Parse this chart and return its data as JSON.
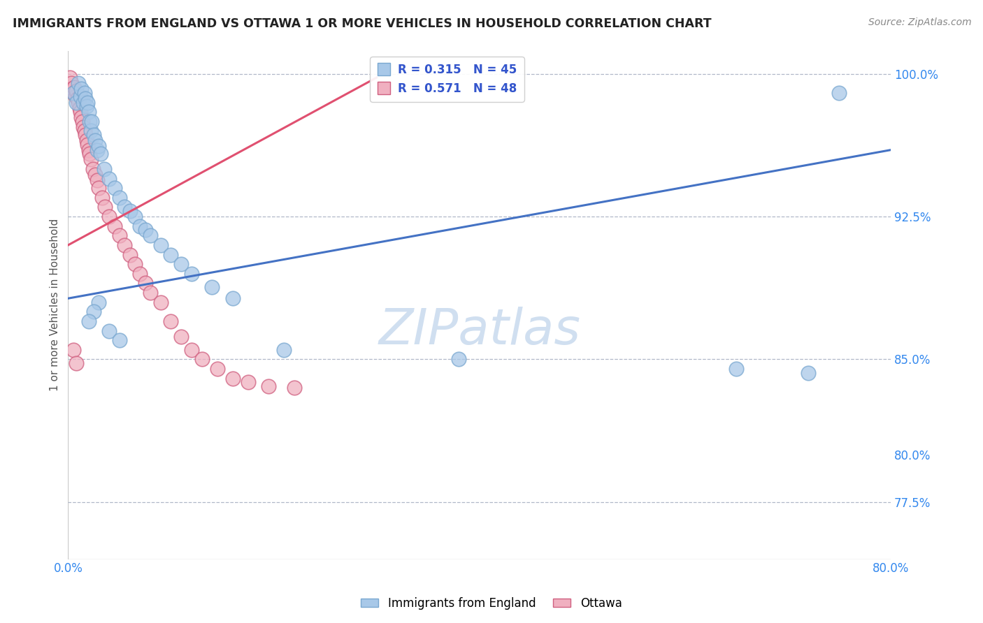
{
  "title": "IMMIGRANTS FROM ENGLAND VS OTTAWA 1 OR MORE VEHICLES IN HOUSEHOLD CORRELATION CHART",
  "source": "Source: ZipAtlas.com",
  "ylabel": "1 or more Vehicles in Household",
  "legend_label_blue": "Immigrants from England",
  "legend_label_pink": "Ottawa",
  "R_blue": 0.315,
  "N_blue": 45,
  "R_pink": 0.571,
  "N_pink": 48,
  "xlim": [
    0.0,
    0.8
  ],
  "ylim": [
    0.745,
    1.012
  ],
  "xticks": [
    0.0,
    0.1,
    0.2,
    0.3,
    0.4,
    0.5,
    0.6,
    0.7,
    0.8
  ],
  "xticklabels": [
    "0.0%",
    "",
    "",
    "",
    "",
    "",
    "",
    "",
    "80.0%"
  ],
  "yticks": [
    0.775,
    0.8,
    0.825,
    0.85,
    0.875,
    0.9,
    0.925,
    0.95,
    0.975,
    1.0
  ],
  "yticklabels_right": [
    "77.5%",
    "80.0%",
    "",
    "85.0%",
    "",
    "",
    "92.5%",
    "",
    "",
    "100.0%"
  ],
  "hgrid_values": [
    1.0,
    0.925,
    0.85,
    0.775
  ],
  "color_blue": "#a8c8e8",
  "color_blue_edge": "#7aa8d0",
  "color_pink": "#f0b0c0",
  "color_pink_edge": "#d06080",
  "color_blue_line": "#4472c4",
  "color_pink_line": "#e05070",
  "watermark_color": "#d0dff0",
  "blue_x": [
    0.005,
    0.008,
    0.01,
    0.012,
    0.013,
    0.015,
    0.016,
    0.017,
    0.018,
    0.019,
    0.02,
    0.021,
    0.022,
    0.023,
    0.025,
    0.026,
    0.028,
    0.03,
    0.032,
    0.035,
    0.04,
    0.045,
    0.05,
    0.055,
    0.06,
    0.065,
    0.07,
    0.075,
    0.08,
    0.09,
    0.1,
    0.11,
    0.12,
    0.14,
    0.16,
    0.03,
    0.025,
    0.02,
    0.04,
    0.05,
    0.21,
    0.38,
    0.65,
    0.72,
    0.75
  ],
  "blue_y": [
    0.99,
    0.985,
    0.995,
    0.988,
    0.992,
    0.985,
    0.99,
    0.987,
    0.983,
    0.985,
    0.98,
    0.975,
    0.97,
    0.975,
    0.968,
    0.965,
    0.96,
    0.962,
    0.958,
    0.95,
    0.945,
    0.94,
    0.935,
    0.93,
    0.928,
    0.925,
    0.92,
    0.918,
    0.915,
    0.91,
    0.905,
    0.9,
    0.895,
    0.888,
    0.882,
    0.88,
    0.875,
    0.87,
    0.865,
    0.86,
    0.855,
    0.85,
    0.845,
    0.843,
    0.99
  ],
  "pink_x": [
    0.002,
    0.003,
    0.004,
    0.005,
    0.006,
    0.007,
    0.008,
    0.009,
    0.01,
    0.011,
    0.012,
    0.013,
    0.014,
    0.015,
    0.016,
    0.017,
    0.018,
    0.019,
    0.02,
    0.021,
    0.022,
    0.024,
    0.026,
    0.028,
    0.03,
    0.033,
    0.036,
    0.04,
    0.045,
    0.05,
    0.055,
    0.06,
    0.065,
    0.07,
    0.075,
    0.08,
    0.09,
    0.1,
    0.11,
    0.12,
    0.13,
    0.145,
    0.16,
    0.175,
    0.195,
    0.22,
    0.005,
    0.008
  ],
  "pink_y": [
    0.998,
    0.995,
    0.992,
    0.99,
    0.993,
    0.988,
    0.991,
    0.987,
    0.985,
    0.982,
    0.98,
    0.977,
    0.975,
    0.972,
    0.97,
    0.968,
    0.965,
    0.963,
    0.96,
    0.958,
    0.955,
    0.95,
    0.947,
    0.944,
    0.94,
    0.935,
    0.93,
    0.925,
    0.92,
    0.915,
    0.91,
    0.905,
    0.9,
    0.895,
    0.89,
    0.885,
    0.88,
    0.87,
    0.862,
    0.855,
    0.85,
    0.845,
    0.84,
    0.838,
    0.836,
    0.835,
    0.855,
    0.848
  ],
  "trendline_blue_x0": 0.0,
  "trendline_blue_y0": 0.882,
  "trendline_blue_x1": 0.8,
  "trendline_blue_y1": 0.96,
  "trendline_pink_x0": 0.0,
  "trendline_pink_y0": 0.91,
  "trendline_pink_x1": 0.3,
  "trendline_pink_y1": 0.998
}
